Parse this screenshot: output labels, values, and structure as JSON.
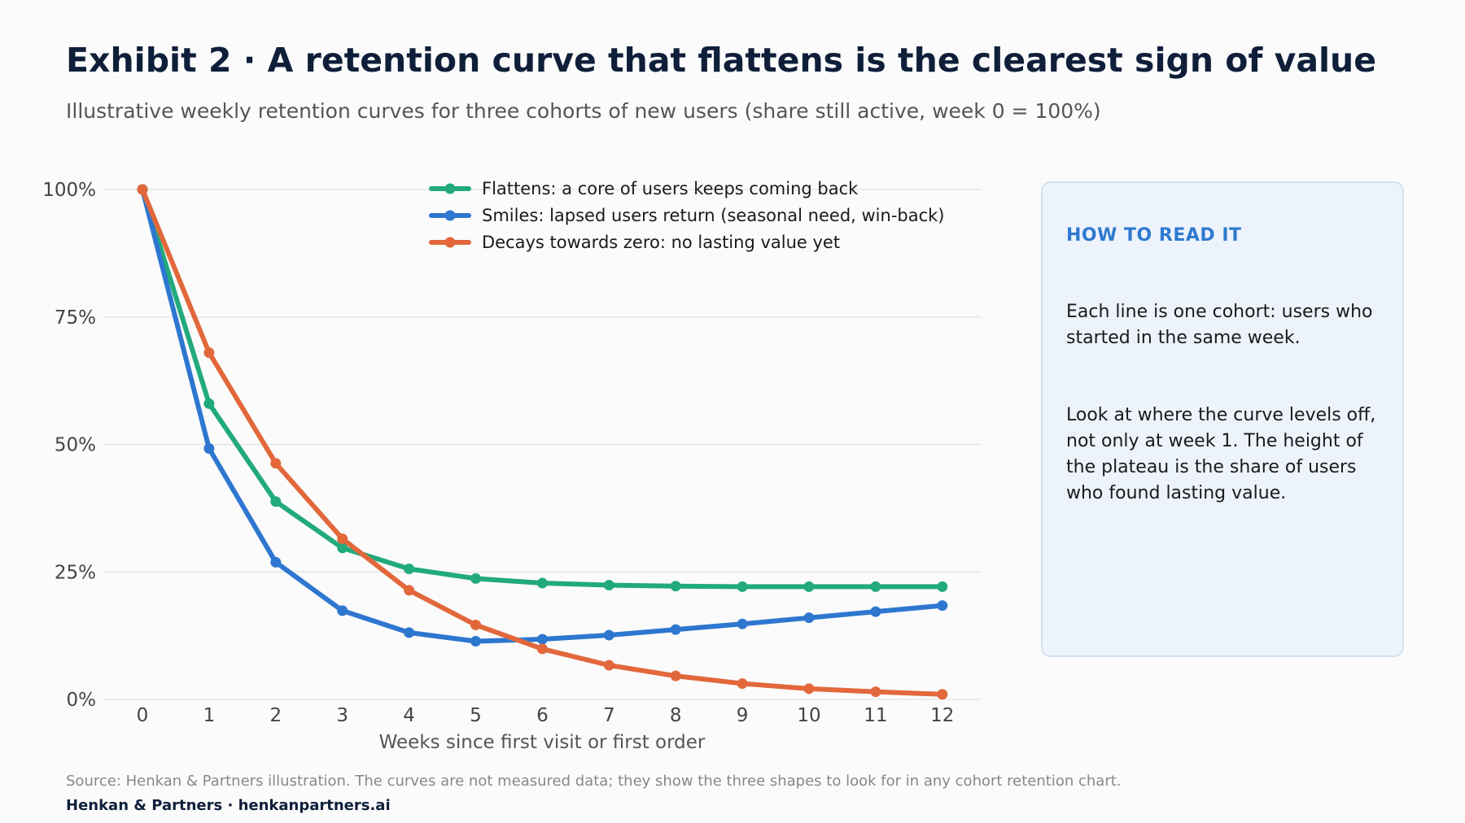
{
  "header": {
    "title": "Exhibit 2 · A retention curve that flattens is the clearest sign of value",
    "subtitle": "Illustrative weekly retention curves for three cohorts of new users (share still active, week 0 = 100%)"
  },
  "chart_data": {
    "type": "line",
    "title": "",
    "xlabel": "Weeks since first visit or first order",
    "ylabel": "",
    "x": [
      0,
      1,
      2,
      3,
      4,
      5,
      6,
      7,
      8,
      9,
      10,
      11,
      12
    ],
    "x_tick_labels": [
      "0",
      "1",
      "2",
      "3",
      "4",
      "5",
      "6",
      "7",
      "8",
      "9",
      "10",
      "11",
      "12"
    ],
    "y_tick_labels": [
      "0%",
      "25%",
      "50%",
      "75%",
      "100%"
    ],
    "y_ticks": [
      0,
      25,
      50,
      75,
      100
    ],
    "ylim": [
      0,
      100
    ],
    "grid": "horizontal",
    "legend_position": "top",
    "series": [
      {
        "name": "Flattens: a core of users keeps coming back",
        "color": "#22aa7c",
        "values": [
          100,
          58,
          38.8,
          29.7,
          25.6,
          23.7,
          22.8,
          22.4,
          22.2,
          22.1,
          22.1,
          22.1,
          22.1
        ]
      },
      {
        "name": "Smiles: lapsed users return (seasonal need, win-back)",
        "color": "#2e77d0",
        "values": [
          100,
          49.2,
          26.9,
          17.4,
          13.1,
          11.4,
          11.8,
          12.6,
          13.7,
          14.8,
          16.0,
          17.2,
          18.4
        ]
      },
      {
        "name": "Decays towards zero: no lasting value yet",
        "color": "#e2683c",
        "values": [
          100,
          68,
          46.3,
          31.5,
          21.4,
          14.6,
          9.9,
          6.7,
          4.6,
          3.1,
          2.1,
          1.5,
          1.0
        ]
      }
    ]
  },
  "panel": {
    "heading": "HOW TO READ IT",
    "paragraph_1": "Each line is one cohort: users who started in the same week.",
    "paragraph_2": "Look at where the curve levels off, not only at week 1. The height of the plateau is the share of users who found lasting value."
  },
  "footer": {
    "source": "Source: Henkan & Partners illustration. The curves are not measured data; they show the three shapes to look for in any cohort retention chart.",
    "brand": "Henkan & Partners · henkanpartners.ai"
  }
}
